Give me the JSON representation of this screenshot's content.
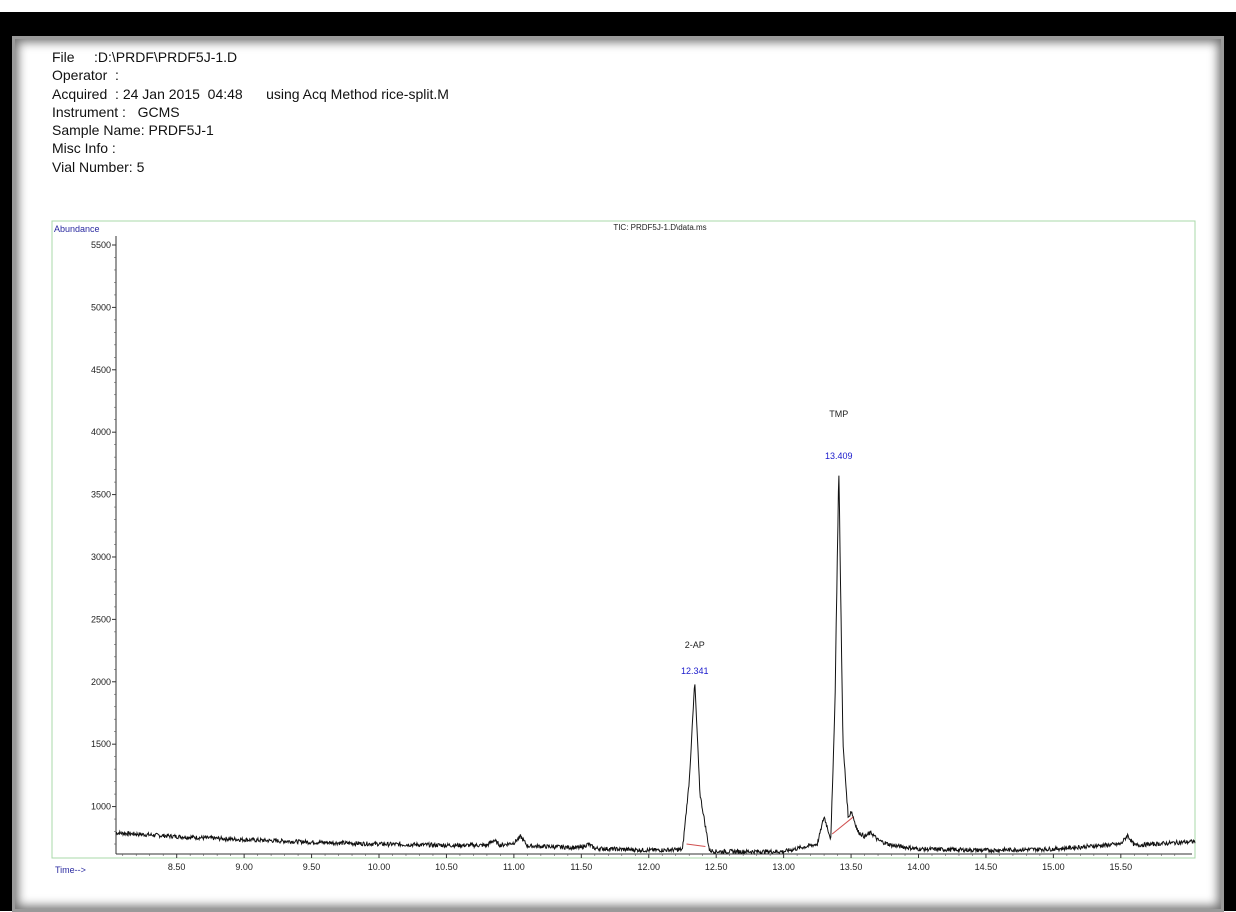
{
  "header": {
    "file": {
      "label": "File",
      "value": ":D:\\PRDF\\PRDF5J-1.D"
    },
    "operator": {
      "label": "Operator",
      "value": ":"
    },
    "acquired": {
      "label": "Acquired",
      "value": ": 24 Jan 2015  04:48",
      "method": "using Acq Method rice-split.M"
    },
    "instrument": {
      "label": "Instrument :",
      "value": "GCMS"
    },
    "sample_name": {
      "label": "Sample Name:",
      "value": "PRDF5J-1"
    },
    "misc_info": {
      "label": "Misc Info",
      "value": ":"
    },
    "vial_number": {
      "label": "Vial Number:",
      "value": "5"
    }
  },
  "chart_data": {
    "type": "line",
    "title": "TIC: PRDF5J-1.D\\data.ms",
    "xlabel": "Time-->",
    "ylabel": "Abundance",
    "xlim": [
      8.05,
      16.05
    ],
    "ylim": [
      620,
      5540
    ],
    "x_ticks": [
      "8.50",
      "9.00",
      "9.50",
      "10.00",
      "10.50",
      "11.00",
      "11.50",
      "12.00",
      "12.50",
      "13.00",
      "13.50",
      "14.00",
      "14.50",
      "15.00",
      "15.50"
    ],
    "x_tick_values": [
      8.5,
      9.0,
      9.5,
      10.0,
      10.5,
      11.0,
      11.5,
      12.0,
      12.5,
      13.0,
      13.5,
      14.0,
      14.5,
      15.0,
      15.5
    ],
    "y_ticks": [
      "1000",
      "1500",
      "2000",
      "2500",
      "3000",
      "3500",
      "4000",
      "4500",
      "5000",
      "5500"
    ],
    "y_tick_values": [
      1000,
      1500,
      2000,
      2500,
      3000,
      3500,
      4000,
      4500,
      5000,
      5500
    ],
    "series": [
      {
        "x": [
          8.05,
          8.5,
          9.0,
          9.5,
          10.0,
          10.5,
          10.8,
          10.85,
          10.9,
          11.0,
          11.05,
          11.1,
          11.5,
          11.55,
          11.6,
          12.0,
          12.25,
          12.3,
          12.341,
          12.38,
          12.45,
          12.5,
          13.0,
          13.25,
          13.3,
          13.35,
          13.38,
          13.409,
          13.44,
          13.48,
          13.5,
          13.55,
          13.6,
          13.65,
          13.7,
          13.8,
          14.0,
          14.5,
          15.0,
          15.5,
          15.55,
          15.6,
          16.05
        ],
        "y": [
          790,
          760,
          735,
          715,
          700,
          690,
          690,
          730,
          690,
          710,
          760,
          685,
          670,
          700,
          665,
          650,
          655,
          1200,
          2000,
          1100,
          650,
          640,
          640,
          700,
          920,
          740,
          1800,
          3720,
          1500,
          900,
          970,
          800,
          760,
          790,
          730,
          690,
          660,
          650,
          660,
          700,
          770,
          690,
          720
        ]
      }
    ],
    "peaks": [
      {
        "name": "2-AP",
        "rt": "12.341",
        "x": 12.341,
        "y": 2000
      },
      {
        "name": "TMP",
        "rt": "13.409",
        "x": 13.409,
        "y": 3720
      }
    ],
    "colors": {
      "frame": "#a8d8a8",
      "trace": "#111111",
      "baseline": "#d05050",
      "axis_title": "#2a2aa0",
      "retention_time": "#1a1acc"
    },
    "grid": false
  }
}
